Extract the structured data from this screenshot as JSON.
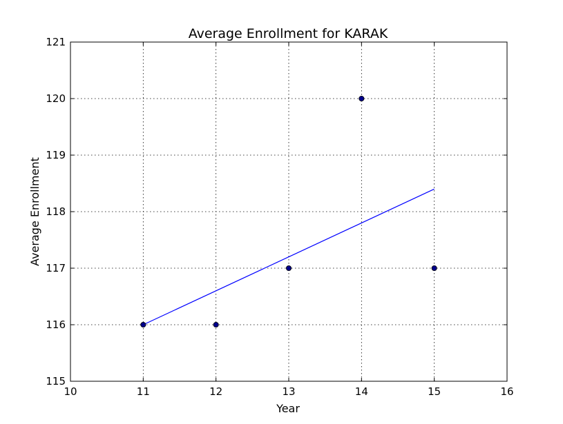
{
  "chart_data": {
    "type": "scatter",
    "title": "Average Enrollment for KARAK",
    "xlabel": "Year",
    "ylabel": "Average Enrollment",
    "xlim": [
      10,
      16
    ],
    "ylim": [
      115,
      121
    ],
    "x_ticks": [
      10,
      11,
      12,
      13,
      14,
      15,
      16
    ],
    "y_ticks": [
      115,
      116,
      117,
      118,
      119,
      120,
      121
    ],
    "grid": true,
    "points": {
      "x": [
        11,
        12,
        13,
        14,
        15
      ],
      "y": [
        116,
        116,
        117,
        120,
        117
      ],
      "color": "#00008b"
    },
    "trend_line": {
      "x": [
        11,
        15
      ],
      "y": [
        116,
        118.4
      ],
      "color": "#0000ff"
    }
  }
}
